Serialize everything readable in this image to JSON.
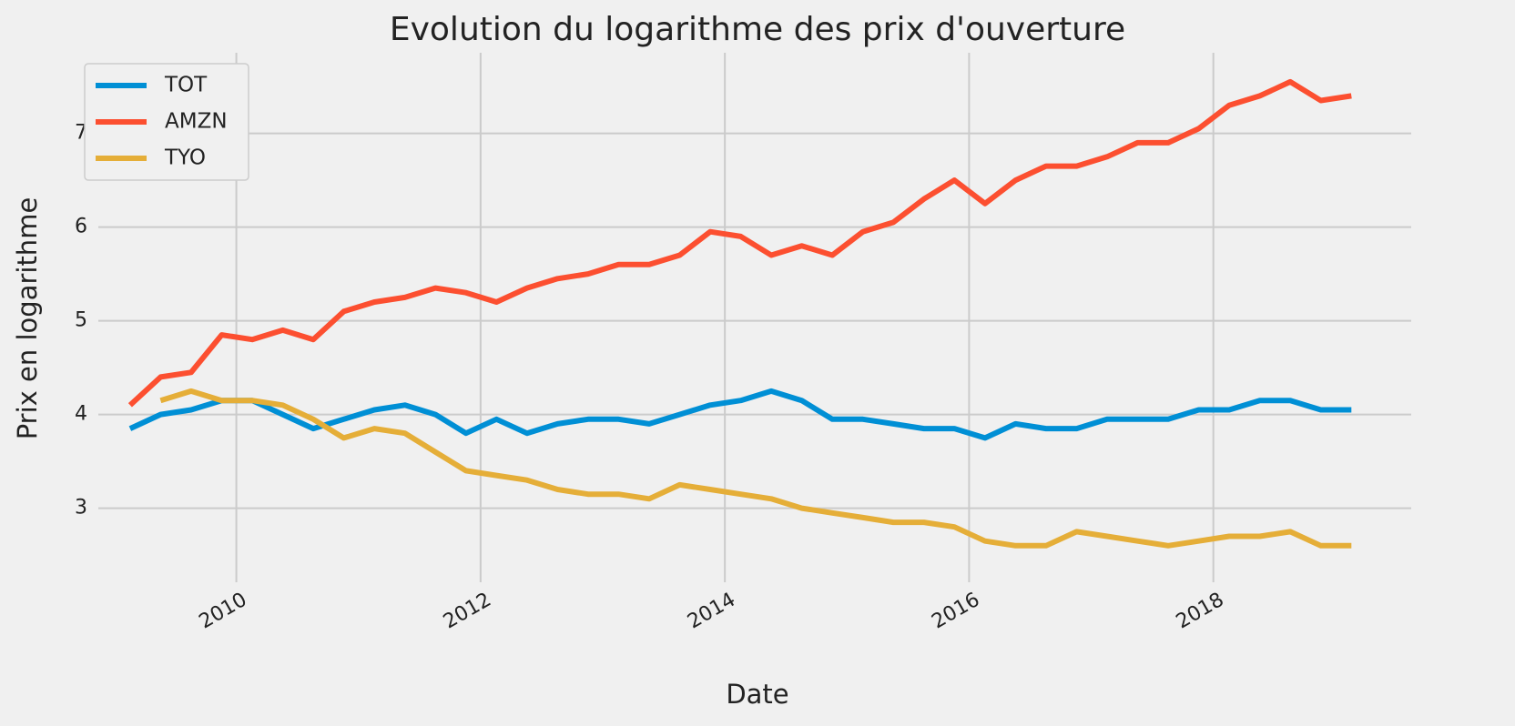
{
  "chart_data": {
    "type": "line",
    "title": "Evolution du logarithme des prix d'ouverture",
    "x_label": "Date",
    "y_label": "Prix en logarithme",
    "x": [
      2009.13,
      2009.38,
      2009.63,
      2009.88,
      2010.13,
      2010.38,
      2010.63,
      2010.88,
      2011.13,
      2011.38,
      2011.63,
      2011.88,
      2012.13,
      2012.38,
      2012.63,
      2012.88,
      2013.13,
      2013.38,
      2013.63,
      2013.88,
      2014.13,
      2014.38,
      2014.63,
      2014.88,
      2015.13,
      2015.38,
      2015.63,
      2015.88,
      2016.13,
      2016.38,
      2016.63,
      2016.88,
      2017.13,
      2017.38,
      2017.63,
      2017.88,
      2018.13,
      2018.38,
      2018.63,
      2018.88,
      2019.13
    ],
    "series": [
      {
        "name": "TOT",
        "color": "#008fd5",
        "values": [
          3.85,
          4.0,
          4.05,
          4.15,
          4.15,
          4.0,
          3.85,
          3.95,
          4.05,
          4.1,
          4.0,
          3.8,
          3.95,
          3.8,
          3.9,
          3.95,
          3.95,
          3.9,
          4.0,
          4.1,
          4.15,
          4.25,
          4.15,
          3.95,
          3.95,
          3.9,
          3.85,
          3.85,
          3.75,
          3.9,
          3.85,
          3.85,
          3.95,
          3.95,
          3.95,
          4.05,
          4.05,
          4.15,
          4.15,
          4.05,
          4.05
        ]
      },
      {
        "name": "AMZN",
        "color": "#fc4f30",
        "values": [
          4.1,
          4.4,
          4.45,
          4.85,
          4.8,
          4.9,
          4.8,
          5.1,
          5.2,
          5.25,
          5.35,
          5.3,
          5.2,
          5.35,
          5.45,
          5.5,
          5.6,
          5.6,
          5.7,
          5.95,
          5.9,
          5.7,
          5.8,
          5.7,
          5.95,
          6.05,
          6.3,
          6.5,
          6.25,
          6.5,
          6.65,
          6.65,
          6.75,
          6.9,
          6.9,
          7.05,
          7.3,
          7.4,
          7.55,
          7.35,
          7.4
        ]
      },
      {
        "name": "TYO",
        "color": "#e5ae38",
        "values": [
          null,
          4.15,
          4.25,
          4.15,
          4.15,
          4.1,
          3.95,
          3.75,
          3.85,
          3.8,
          3.6,
          3.4,
          3.35,
          3.3,
          3.2,
          3.15,
          3.15,
          3.1,
          3.25,
          3.2,
          3.15,
          3.1,
          3.0,
          2.95,
          2.9,
          2.85,
          2.85,
          2.8,
          2.65,
          2.6,
          2.6,
          2.75,
          2.7,
          2.65,
          2.6,
          2.65,
          2.7,
          2.7,
          2.75,
          2.6,
          2.6
        ]
      }
    ],
    "xlim": [
      2008.87,
      2019.62
    ],
    "xticks": [
      2010,
      2012,
      2014,
      2016,
      2018
    ],
    "ylim": [
      2.21,
      7.86
    ],
    "yticks": [
      3,
      4,
      5,
      6,
      7
    ],
    "grid": true,
    "legend": "upper left"
  }
}
